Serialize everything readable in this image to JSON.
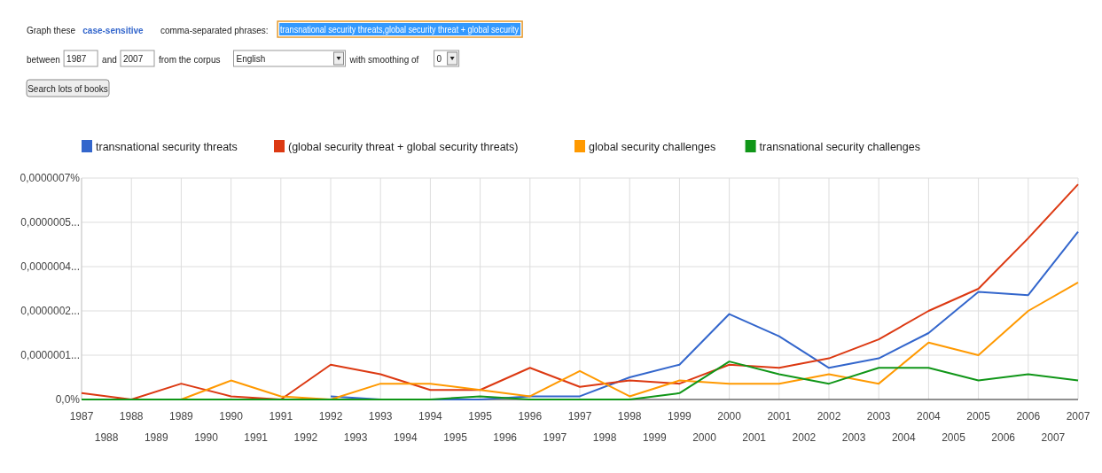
{
  "chart_data": {
    "type": "line",
    "legend": "top",
    "grid": true,
    "marker": "none",
    "annotations": [
      "Graph these",
      "case-sensitive",
      "comma-separated phrases:",
      "transnational security threats,global security threat + global security",
      "between",
      "1987",
      "and",
      "2007",
      "from the corpus",
      "English",
      "with smoothing of",
      "0",
      "Search lots of books"
    ],
    "x": [
      1987,
      1988,
      1989,
      1990,
      1991,
      1992,
      1993,
      1994,
      1995,
      1996,
      1997,
      1998,
      1999,
      2000,
      2001,
      2002,
      2003,
      2004,
      2005,
      2006,
      2007
    ],
    "xlim": [
      1987,
      2007
    ],
    "x2ticks": [
      1987,
      1988,
      1989,
      1990,
      1991,
      1992,
      1993,
      1994,
      1995,
      1996,
      1997,
      1998,
      1999,
      2000,
      2001,
      2002,
      2003,
      2004,
      2005,
      2006,
      2007
    ],
    "x2lim": [
      1987,
      2007
    ],
    "xticks": [
      {
        "value": 1987.5,
        "label": "1988"
      },
      {
        "value": 1988.5,
        "label": "1989"
      },
      {
        "value": 1989.5,
        "label": "1990"
      },
      {
        "value": 1990.5,
        "label": "1991"
      },
      {
        "value": 1991.5,
        "label": "1992"
      },
      {
        "value": 1992.5,
        "label": "1993"
      },
      {
        "value": 1993.5,
        "label": "1994"
      },
      {
        "value": 1994.5,
        "label": "1995"
      },
      {
        "value": 1995.5,
        "label": "1996"
      },
      {
        "value": 1996.5,
        "label": "1997"
      },
      {
        "value": 1997.5,
        "label": "1998"
      },
      {
        "value": 1998.5,
        "label": "1999"
      },
      {
        "value": 1999.5,
        "label": "2000"
      },
      {
        "value": 2000.5,
        "label": "2001"
      },
      {
        "value": 2001.5,
        "label": "2002"
      },
      {
        "value": 2002.5,
        "label": "2003"
      },
      {
        "value": 2003.5,
        "label": "2004"
      },
      {
        "value": 2004.5,
        "label": "2005"
      },
      {
        "value": 2005.5,
        "label": "2006"
      },
      {
        "value": 2006.5,
        "label": "2007"
      }
    ],
    "ylim": [
      0,
      7e-07
    ],
    "yticks": [
      {
        "value": 0,
        "label": "0,0%"
      },
      {
        "value": 1.4e-07,
        "label": "0,0000001..."
      },
      {
        "value": 2.8e-07,
        "label": "0,0000002..."
      },
      {
        "value": 4.2e-07,
        "label": "0,0000004..."
      },
      {
        "value": 5.6e-07,
        "label": "0,0000005..."
      },
      {
        "value": 7e-07,
        "label": "0,0000007%"
      }
    ],
    "series": [
      {
        "name": "transnational security threats",
        "color": "#3366cc",
        "values": [
          null,
          null,
          null,
          null,
          null,
          1e-08,
          0,
          0,
          0,
          1e-08,
          1e-08,
          7e-08,
          1.1e-07,
          2.7e-07,
          2e-07,
          1e-07,
          1.3e-07,
          2.1e-07,
          3.4e-07,
          3.3e-07,
          5.3e-07
        ]
      },
      {
        "name": "(global security threat + global security threats)",
        "color": "#dc3912",
        "values": [
          2e-08,
          0,
          5e-08,
          1e-08,
          0,
          1.1e-07,
          8e-08,
          3e-08,
          3e-08,
          1e-07,
          4e-08,
          6e-08,
          5e-08,
          1.1e-07,
          1e-07,
          1.3e-07,
          1.9e-07,
          2.8e-07,
          3.5e-07,
          5.1e-07,
          6.8e-07
        ]
      },
      {
        "name": "global security challenges",
        "color": "#ff9900",
        "values": [
          0,
          0,
          0,
          6e-08,
          1e-08,
          0,
          5e-08,
          5e-08,
          3e-08,
          1e-08,
          9e-08,
          1e-08,
          6e-08,
          5e-08,
          5e-08,
          8e-08,
          5e-08,
          1.8e-07,
          1.4e-07,
          2.8e-07,
          3.7e-07
        ]
      },
      {
        "name": "transnational security challenges",
        "color": "#109618",
        "values": [
          0,
          0,
          0,
          0,
          0,
          0,
          0,
          0,
          1e-08,
          0,
          0,
          0,
          2e-08,
          1.2e-07,
          8e-08,
          5e-08,
          1e-07,
          1e-07,
          6e-08,
          8e-08,
          6e-08
        ]
      }
    ]
  }
}
